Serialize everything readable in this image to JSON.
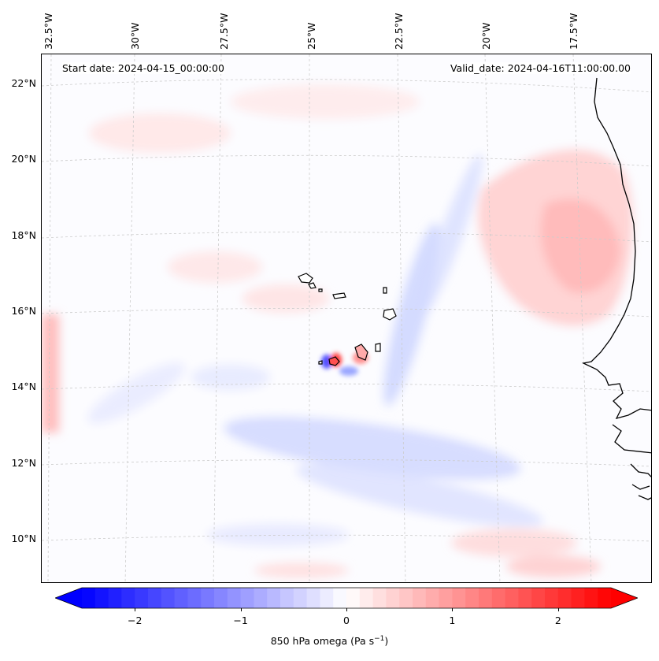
{
  "map": {
    "longitude_labels": [
      "32.5°W",
      "30°W",
      "27.5°W",
      "25°W",
      "22.5°W",
      "20°W",
      "17.5°W"
    ],
    "latitude_labels": [
      "22°N",
      "20°N",
      "18°N",
      "16°N",
      "14°N",
      "12°N",
      "10°N"
    ],
    "start_date": "Start date: 2024-04-15_00:00:00",
    "valid_date": "Valid_date: 2024-04-16T11:00:00.00",
    "gridline_style": "dashed light gray",
    "field_colors": {
      "negative": "#0000ff",
      "zero": "#ffffff",
      "positive": "#ff0000"
    }
  },
  "colorbar": {
    "ticks": [
      "−2",
      "−1",
      "0",
      "1",
      "2"
    ],
    "tick_values": [
      -2,
      -1,
      0,
      1,
      2
    ],
    "range": [
      -2.5,
      2.5
    ],
    "levels": 40,
    "extend": "both",
    "label_main": "850 hPa omega (Pa s",
    "label_sup": "−1",
    "label_end": ")"
  }
}
